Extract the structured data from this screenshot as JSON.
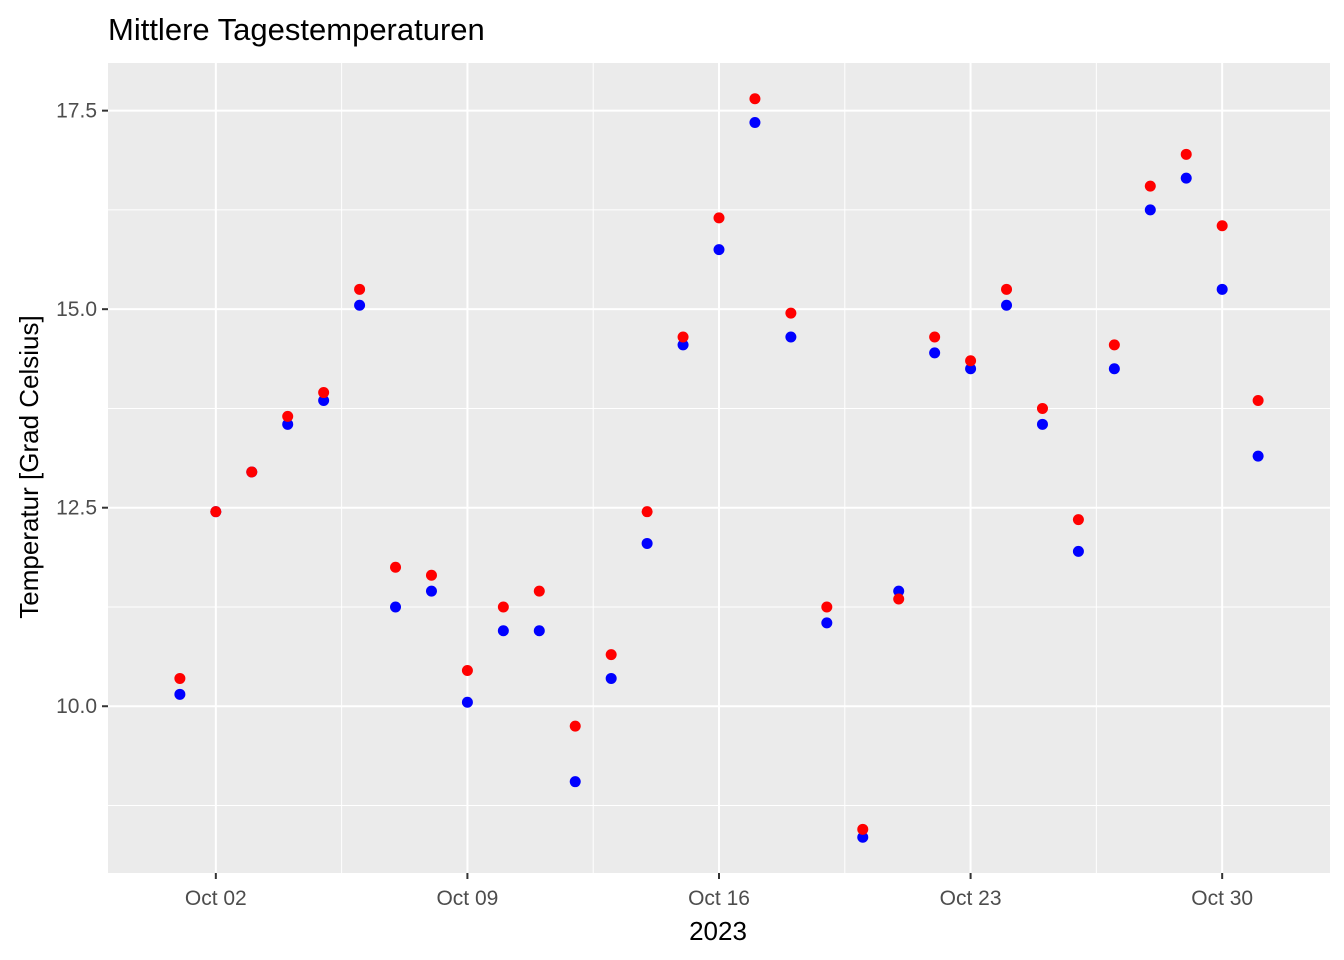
{
  "chart_data": {
    "type": "scatter",
    "title": "Mittlere Tagestemperaturen",
    "xlabel": "2023",
    "ylabel": "Temperatur [Grad Celsius]",
    "x_ticks": [
      {
        "date": "2023-10-02",
        "label": "Oct 02"
      },
      {
        "date": "2023-10-09",
        "label": "Oct 09"
      },
      {
        "date": "2023-10-16",
        "label": "Oct 16"
      },
      {
        "date": "2023-10-23",
        "label": "Oct 23"
      },
      {
        "date": "2023-10-30",
        "label": "Oct 30"
      }
    ],
    "y_ticks": [
      {
        "value": 10.0,
        "label": "10.0"
      },
      {
        "value": 12.5,
        "label": "12.5"
      },
      {
        "value": 15.0,
        "label": "15.0"
      },
      {
        "value": 17.5,
        "label": "17.5"
      }
    ],
    "xlim": [
      "2023-09-29",
      "2023-11-02"
    ],
    "ylim": [
      7.9,
      18.1
    ],
    "grid": true,
    "background": "#ebebeb",
    "grid_color": "#ffffff",
    "legend": "none",
    "x": [
      "2023-10-01",
      "2023-10-02",
      "2023-10-03",
      "2023-10-04",
      "2023-10-05",
      "2023-10-06",
      "2023-10-07",
      "2023-10-08",
      "2023-10-09",
      "2023-10-10",
      "2023-10-11",
      "2023-10-12",
      "2023-10-13",
      "2023-10-14",
      "2023-10-15",
      "2023-10-16",
      "2023-10-17",
      "2023-10-18",
      "2023-10-19",
      "2023-10-20",
      "2023-10-21",
      "2023-10-22",
      "2023-10-23",
      "2023-10-24",
      "2023-10-25",
      "2023-10-26",
      "2023-10-27",
      "2023-10-28",
      "2023-10-29",
      "2023-10-30",
      "2023-10-31"
    ],
    "series": [
      {
        "color": "#0000ff",
        "values": [
          10.15,
          12.45,
          12.95,
          13.55,
          13.85,
          15.05,
          11.25,
          11.45,
          10.05,
          10.95,
          10.95,
          9.05,
          10.35,
          12.05,
          14.55,
          15.75,
          17.35,
          14.65,
          11.05,
          8.35,
          11.45,
          14.45,
          14.25,
          15.05,
          13.55,
          11.95,
          14.25,
          16.25,
          16.65,
          15.25,
          13.15
        ]
      },
      {
        "color": "#ff0000",
        "values": [
          10.35,
          12.45,
          12.95,
          13.65,
          13.95,
          15.25,
          11.75,
          11.65,
          10.45,
          11.25,
          11.45,
          9.75,
          10.65,
          12.45,
          14.65,
          16.15,
          17.65,
          14.95,
          11.25,
          8.45,
          11.35,
          14.65,
          14.35,
          15.25,
          13.75,
          12.35,
          14.55,
          16.55,
          16.95,
          16.05,
          13.85
        ]
      }
    ]
  }
}
